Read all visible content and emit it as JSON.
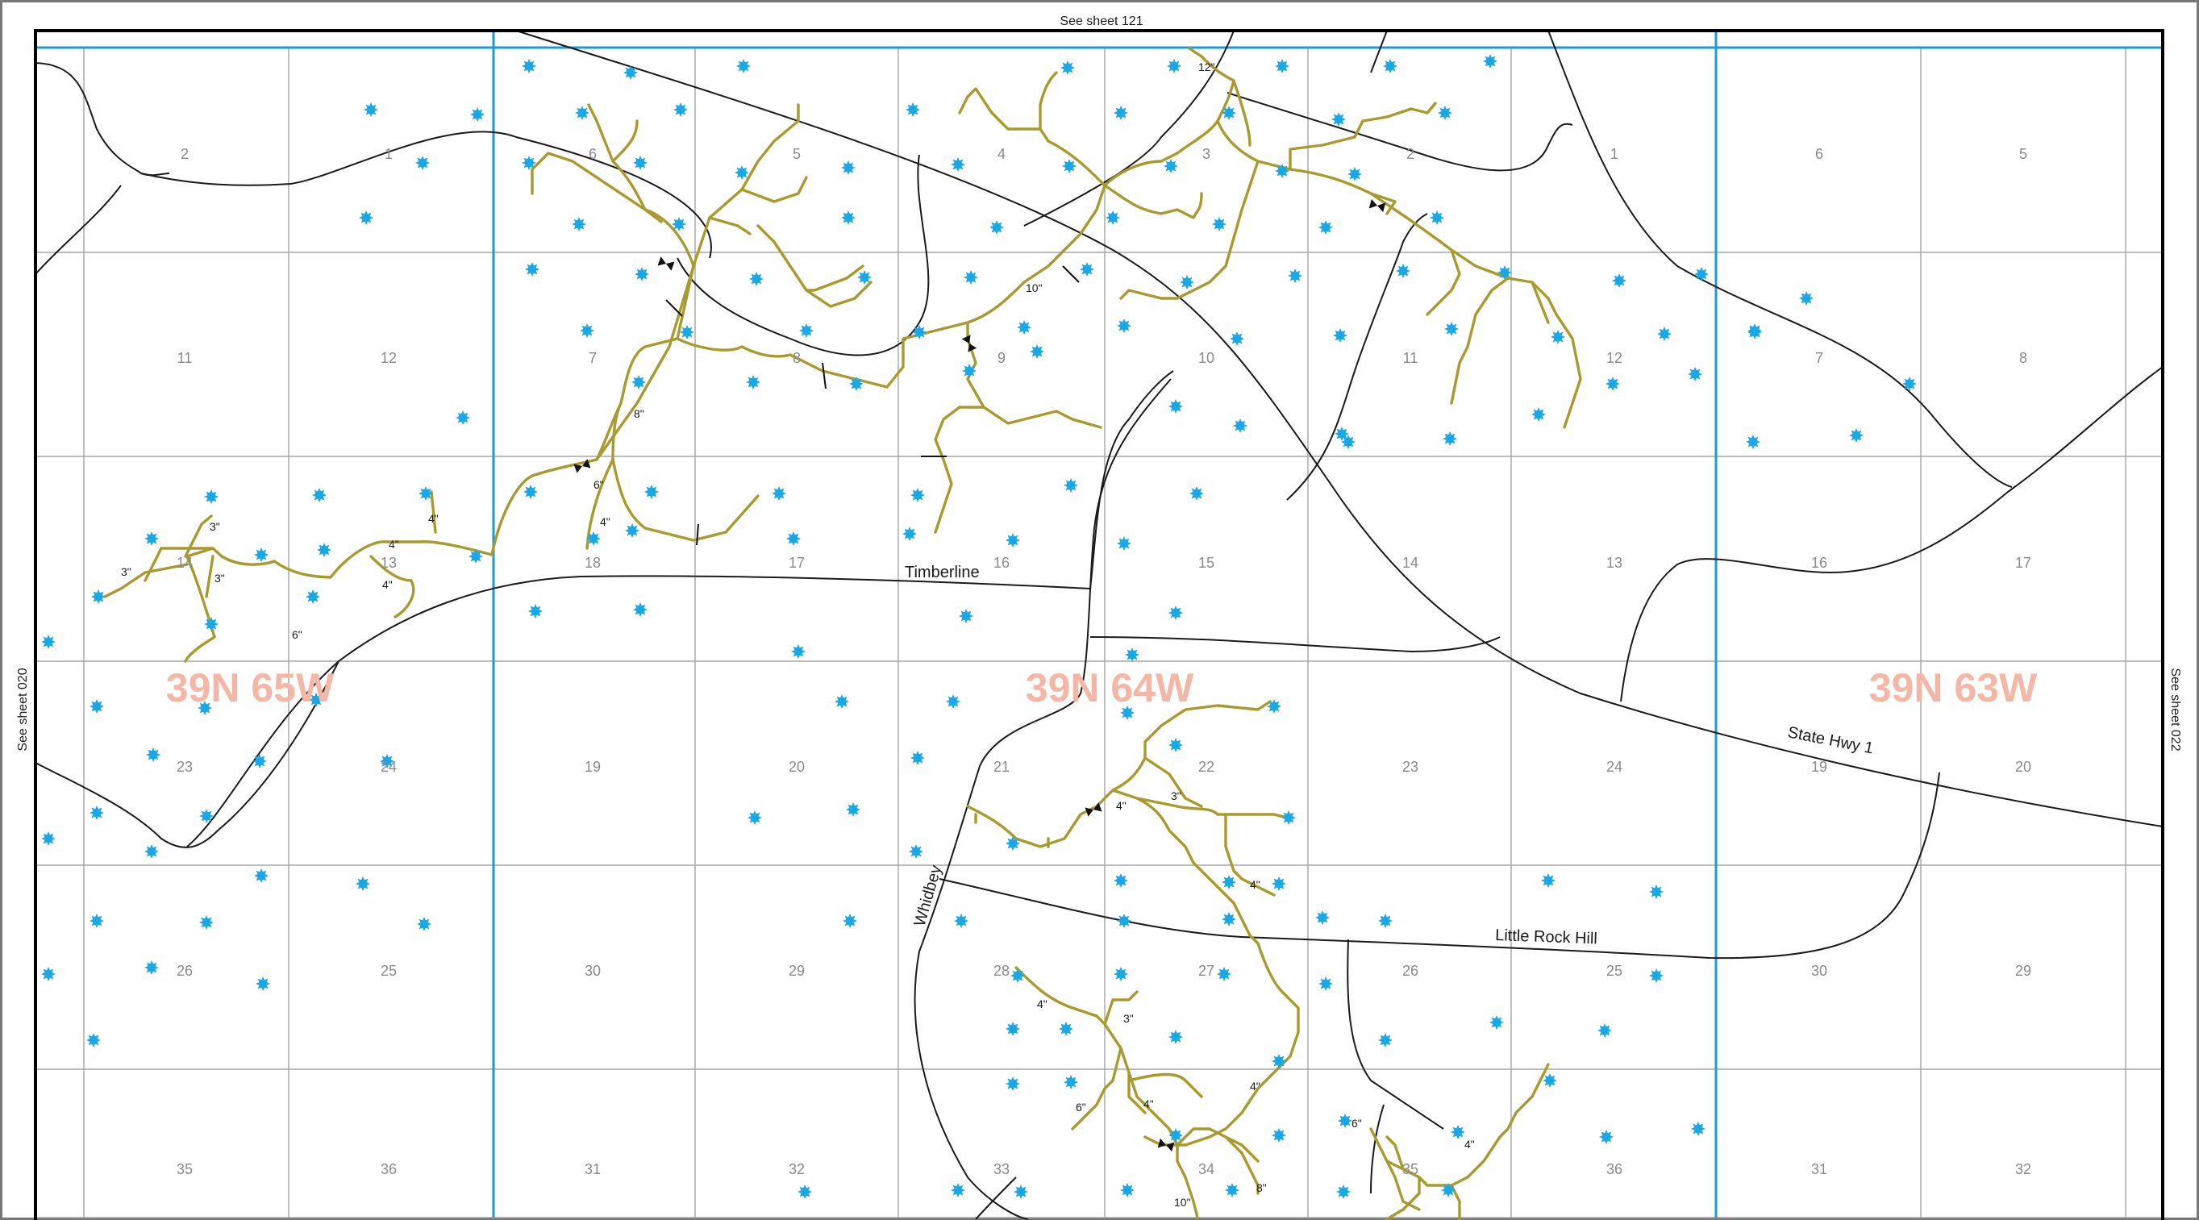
{
  "sheet_refs": {
    "top": "See sheet 121",
    "left": "See sheet 020",
    "right": "See sheet 022"
  },
  "colors": {
    "township_line": "#1a9bd8",
    "section_line": "#a6a6a6",
    "road": "#1a1a1a",
    "pipeline": "#a79a2e",
    "well": "#1aa7e6",
    "township_label": "#f4b7a6"
  },
  "townships": [
    "39N 65W",
    "39N 64W",
    "39N 63W"
  ],
  "sections": [
    [
      "2",
      "1",
      "6",
      "5",
      "4",
      "3",
      "2",
      "1",
      "6",
      "5"
    ],
    [
      "11",
      "12",
      "7",
      "8",
      "9",
      "10",
      "11",
      "12",
      "7",
      "8"
    ],
    [
      "14",
      "13",
      "18",
      "17",
      "16",
      "15",
      "14",
      "13",
      "16",
      "17"
    ],
    [
      "23",
      "24",
      "19",
      "20",
      "21",
      "22",
      "23",
      "24",
      "19",
      "20"
    ],
    [
      "26",
      "25",
      "30",
      "29",
      "28",
      "27",
      "26",
      "25",
      "30",
      "29"
    ],
    [
      "35",
      "36",
      "31",
      "32",
      "33",
      "34",
      "35",
      "36",
      "31",
      "32"
    ]
  ],
  "roads": [
    "Timberline",
    "State Hwy 1",
    "Whidbey",
    "Little Rock Hill"
  ],
  "pipe_sizes": [
    "12\"",
    "10\"",
    "8\"",
    "6\"",
    "4\"",
    "4\"",
    "3\"",
    "3\"",
    "3\"",
    "4\"",
    "4\"",
    "6\"",
    "4\"",
    "3\"",
    "4\"",
    "3\"",
    "4\"",
    "6\"",
    "4\"",
    "10\"",
    "8\"",
    "4\"",
    "6\"",
    "4\""
  ],
  "legend_icons": {
    "well": "well-star-icon",
    "valve": "valve-icon"
  }
}
